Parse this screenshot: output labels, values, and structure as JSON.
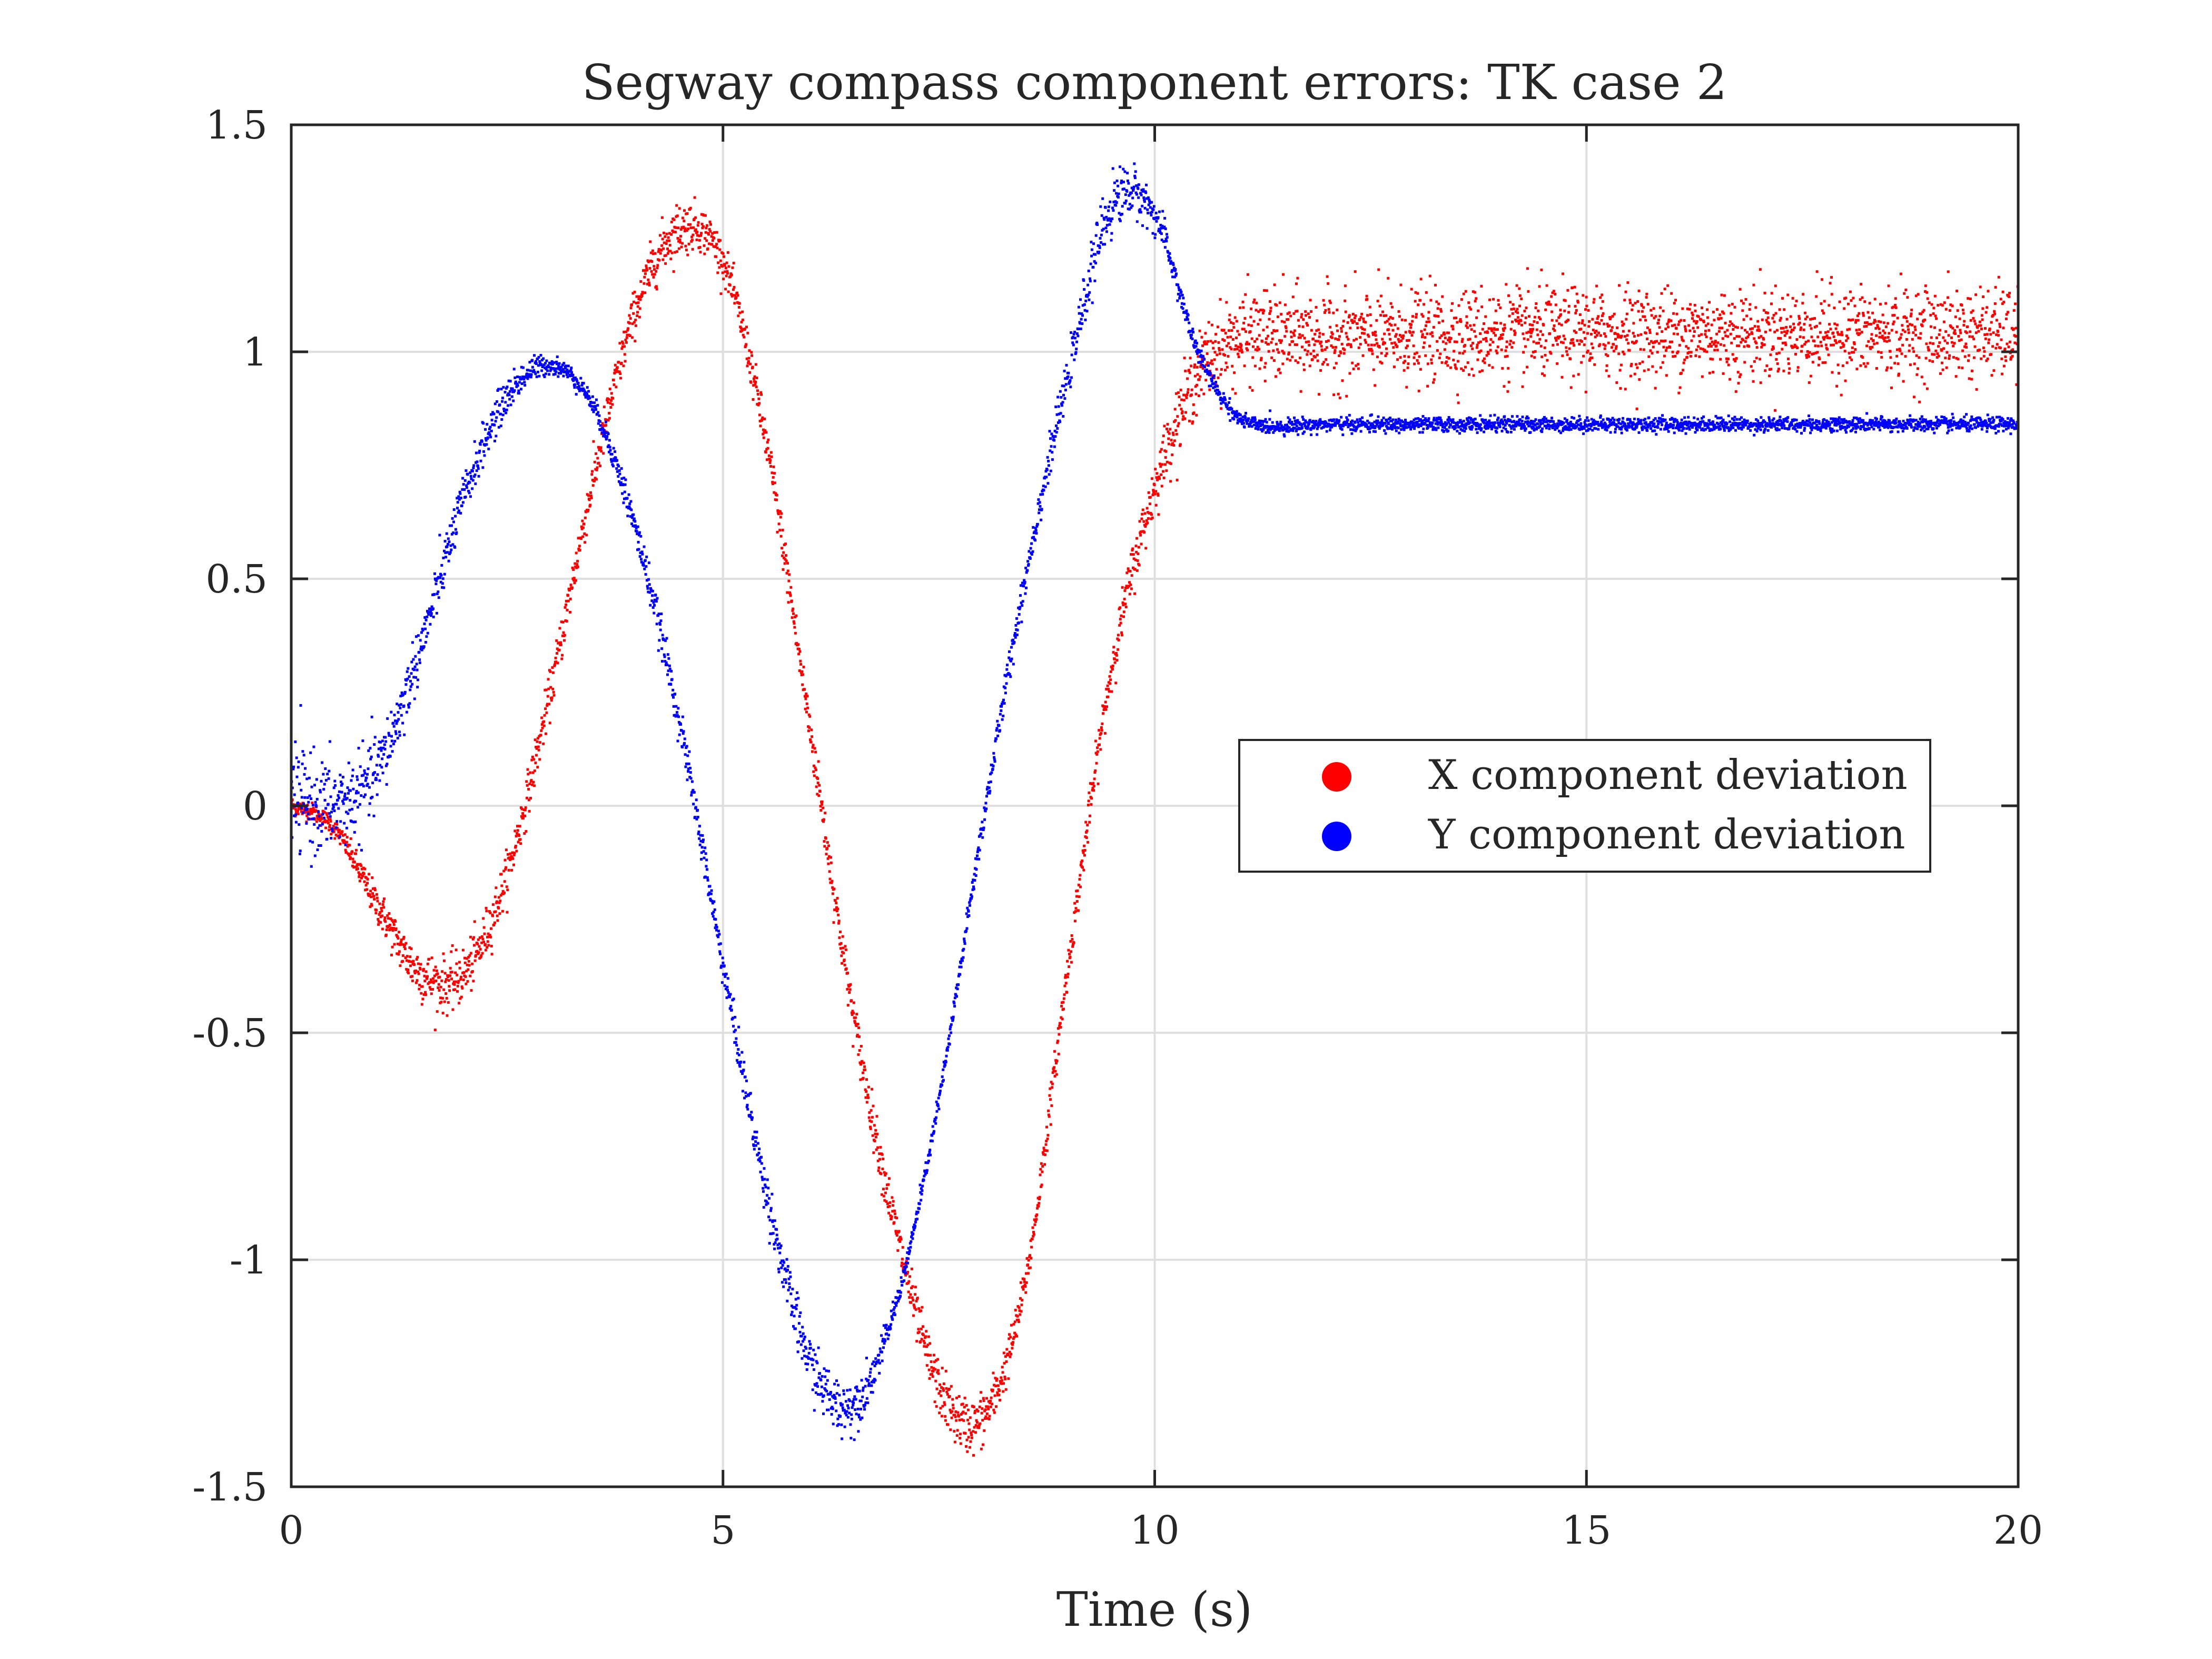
{
  "chart_data": {
    "type": "scatter",
    "title": "Segway compass component errors: TK case 2",
    "xlabel": "Time (s)",
    "ylabel": "",
    "xlim": [
      0,
      20
    ],
    "ylim": [
      -1.5,
      1.5
    ],
    "xticks": [
      0,
      5,
      10,
      15,
      20
    ],
    "xtick_labels": [
      "0",
      "5",
      "10",
      "15",
      "20"
    ],
    "yticks": [
      1.5,
      1,
      0.5,
      0,
      -0.5,
      -1,
      -1.5
    ],
    "ytick_labels": [
      "1.5",
      "1",
      "0.5",
      "0",
      "-0.5",
      "-1",
      "-1.5"
    ],
    "grid": true,
    "legend_position": "center-right",
    "series": [
      {
        "name": "X component deviation",
        "color": "#ff0000",
        "x": [
          0,
          0.5,
          1,
          1.5,
          2,
          2.5,
          3,
          3.5,
          4,
          4.5,
          5,
          5.5,
          6,
          6.5,
          7,
          7.5,
          8,
          8.5,
          9,
          9.5,
          10,
          10.5,
          11,
          12,
          14,
          16,
          18,
          20
        ],
        "y": [
          0.0,
          -0.05,
          -0.22,
          -0.37,
          -0.37,
          -0.15,
          0.25,
          0.72,
          1.1,
          1.27,
          1.2,
          0.8,
          0.18,
          -0.45,
          -0.93,
          -1.28,
          -1.35,
          -1.05,
          -0.35,
          0.3,
          0.7,
          0.95,
          1.03,
          1.03,
          1.04,
          1.04,
          1.04,
          1.04
        ],
        "noise": [
          0.01,
          0.01,
          0.02,
          0.03,
          0.03,
          0.025,
          0.025,
          0.025,
          0.025,
          0.03,
          0.02,
          0.025,
          0.025,
          0.025,
          0.025,
          0.03,
          0.03,
          0.02,
          0.02,
          0.025,
          0.03,
          0.04,
          0.05,
          0.05,
          0.05,
          0.05,
          0.05,
          0.05
        ]
      },
      {
        "name": "Y component deviation",
        "color": "#0000ff",
        "x": [
          0,
          0.5,
          1,
          1.5,
          2,
          2.5,
          3,
          3.5,
          4,
          4.5,
          5,
          5.5,
          6,
          6.5,
          7,
          7.5,
          8,
          8.5,
          9,
          9.5,
          10,
          10.5,
          11,
          12,
          14,
          16,
          18,
          20
        ],
        "y": [
          0.02,
          0.0,
          0.08,
          0.35,
          0.68,
          0.9,
          0.97,
          0.88,
          0.6,
          0.18,
          -0.35,
          -0.85,
          -1.22,
          -1.32,
          -1.1,
          -0.65,
          -0.05,
          0.5,
          0.95,
          1.32,
          1.3,
          1.0,
          0.85,
          0.84,
          0.84,
          0.84,
          0.84,
          0.84
        ],
        "noise": [
          0.06,
          0.05,
          0.04,
          0.03,
          0.025,
          0.02,
          0.01,
          0.01,
          0.02,
          0.02,
          0.02,
          0.025,
          0.03,
          0.03,
          0.01,
          0.01,
          0.015,
          0.02,
          0.02,
          0.035,
          0.02,
          0.01,
          0.008,
          0.008,
          0.008,
          0.008,
          0.008,
          0.008
        ]
      }
    ]
  }
}
